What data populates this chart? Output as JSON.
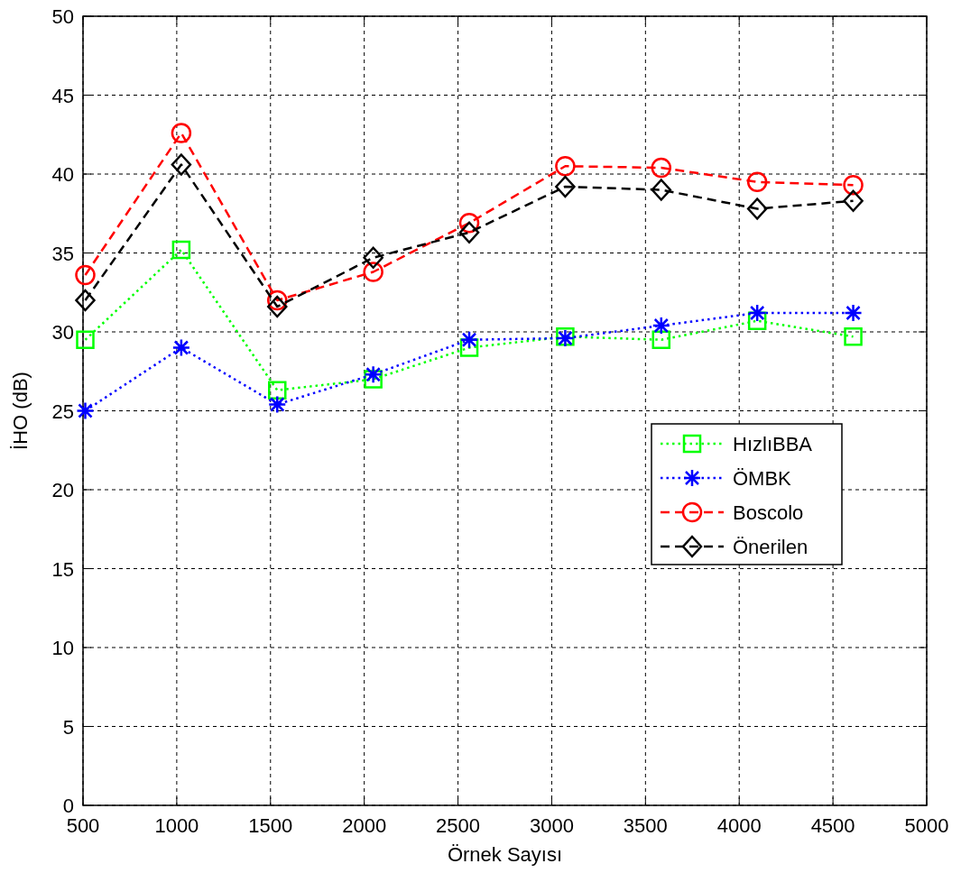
{
  "chart_data": {
    "type": "line",
    "xlabel": "Örnek Sayısı",
    "ylabel": "İHO (dB)",
    "x": [
      512,
      1024,
      1536,
      2048,
      2560,
      3072,
      3584,
      4096,
      4608
    ],
    "xlim": [
      500,
      5000
    ],
    "xticks": [
      500,
      1000,
      1500,
      2000,
      2500,
      3000,
      3500,
      4000,
      4500,
      5000
    ],
    "ylim": [
      0,
      50
    ],
    "yticks": [
      0,
      5,
      10,
      15,
      20,
      25,
      30,
      35,
      40,
      45,
      50
    ],
    "grid": true,
    "legend": "right",
    "series": [
      {
        "name": "HızlıBBA",
        "color": "#00ff00",
        "marker": "square",
        "line_style": "dotted",
        "values": [
          29.5,
          35.2,
          26.3,
          27.0,
          29.0,
          29.7,
          29.5,
          30.7,
          29.7
        ]
      },
      {
        "name": "ÖMBK",
        "color": "#0000ff",
        "marker": "cross",
        "line_style": "dotted",
        "values": [
          25.0,
          29.0,
          25.4,
          27.3,
          29.5,
          29.6,
          30.4,
          31.2,
          31.2
        ]
      },
      {
        "name": "Boscolo",
        "color": "#ff0000",
        "marker": "circle",
        "line_style": "dashed",
        "values": [
          33.6,
          42.6,
          32.0,
          33.8,
          36.9,
          40.5,
          40.4,
          39.5,
          39.3
        ]
      },
      {
        "name": "Önerilen",
        "color": "#000000",
        "marker": "diamond",
        "line_style": "dashed",
        "values": [
          32.0,
          40.6,
          31.6,
          34.7,
          36.3,
          39.2,
          39.0,
          37.8,
          38.3
        ]
      }
    ]
  }
}
